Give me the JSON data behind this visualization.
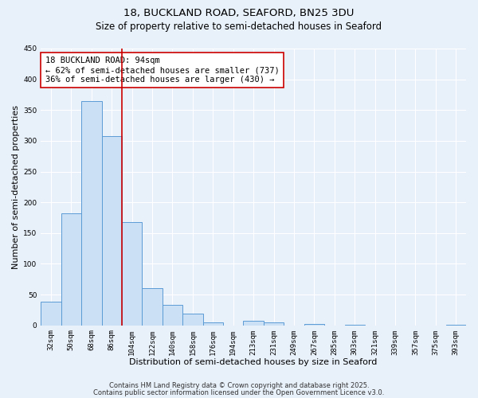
{
  "title": "18, BUCKLAND ROAD, SEAFORD, BN25 3DU",
  "subtitle": "Size of property relative to semi-detached houses in Seaford",
  "xlabel": "Distribution of semi-detached houses by size in Seaford",
  "ylabel": "Number of semi-detached properties",
  "categories": [
    "32sqm",
    "50sqm",
    "68sqm",
    "86sqm",
    "104sqm",
    "122sqm",
    "140sqm",
    "158sqm",
    "176sqm",
    "194sqm",
    "213sqm",
    "231sqm",
    "249sqm",
    "267sqm",
    "285sqm",
    "303sqm",
    "321sqm",
    "339sqm",
    "357sqm",
    "375sqm",
    "393sqm"
  ],
  "values": [
    38,
    182,
    365,
    307,
    168,
    60,
    33,
    19,
    5,
    0,
    8,
    5,
    0,
    2,
    0,
    1,
    0,
    0,
    0,
    0,
    1
  ],
  "bar_color": "#cce0f5",
  "bar_edge_color": "#5b9bd5",
  "ylim": [
    0,
    450
  ],
  "yticks": [
    0,
    50,
    100,
    150,
    200,
    250,
    300,
    350,
    400,
    450
  ],
  "marker_color": "#cc0000",
  "annotation_title": "18 BUCKLAND ROAD: 94sqm",
  "annotation_line1": "← 62% of semi-detached houses are smaller (737)",
  "annotation_line2": "36% of semi-detached houses are larger (430) →",
  "annotation_box_color": "#ffffff",
  "annotation_box_edge_color": "#cc0000",
  "bg_color": "#e8f0fa",
  "grid_color": "#c8d8ee",
  "footer1": "Contains HM Land Registry data © Crown copyright and database right 2025.",
  "footer2": "Contains public sector information licensed under the Open Government Licence v3.0.",
  "title_fontsize": 9.5,
  "subtitle_fontsize": 8.5,
  "axis_label_fontsize": 8,
  "tick_fontsize": 6.5,
  "annotation_fontsize": 7.5,
  "footer_fontsize": 6
}
